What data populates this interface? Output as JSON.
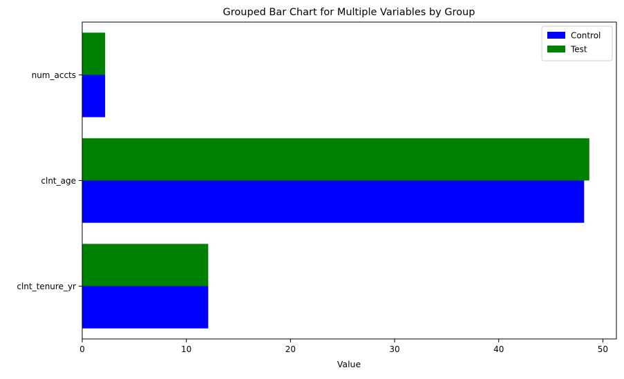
{
  "chart_data": {
    "type": "bar",
    "orientation": "horizontal",
    "title": "Grouped Bar Chart for Multiple Variables by Group",
    "xlabel": "Value",
    "ylabel": "",
    "xlim": [
      0,
      51.3
    ],
    "xticks": [
      0,
      10,
      20,
      30,
      40,
      50
    ],
    "categories": [
      "clnt_tenure_yr",
      "clnt_age",
      "num_accts"
    ],
    "series": [
      {
        "name": "Control",
        "color": "#0000ff",
        "values": [
          12.1,
          48.2,
          2.2
        ]
      },
      {
        "name": "Test",
        "color": "#008000",
        "values": [
          12.1,
          48.7,
          2.2
        ]
      }
    ],
    "legend": "top-right",
    "grid": false
  }
}
